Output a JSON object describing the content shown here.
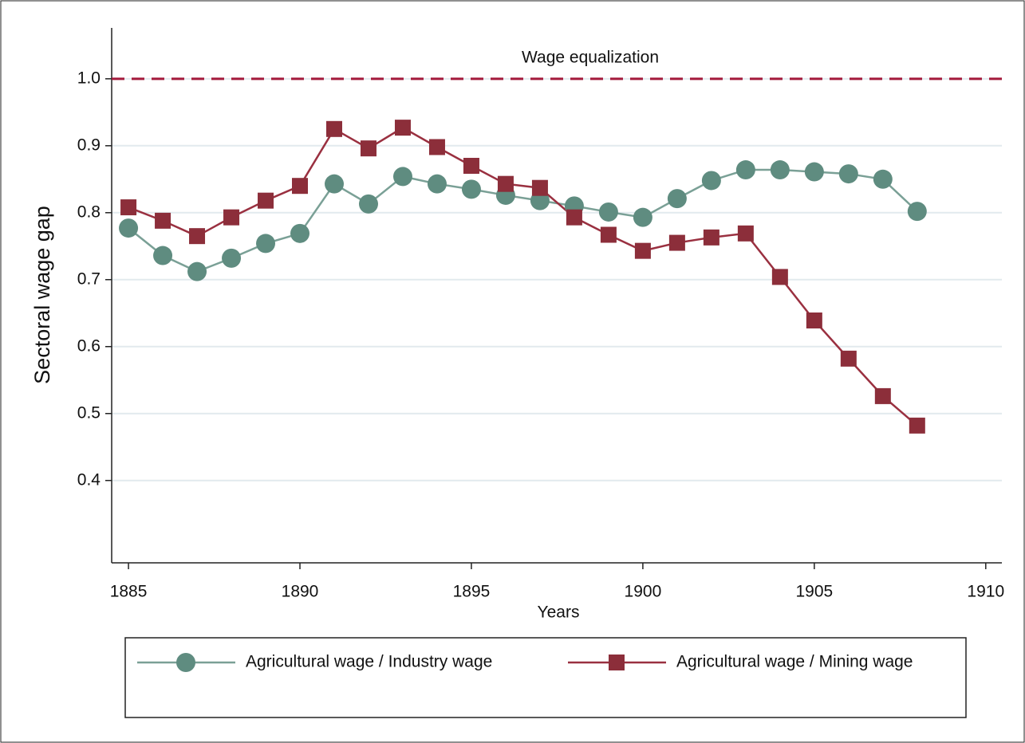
{
  "chart_data": {
    "type": "line",
    "x_label": "Years",
    "y_label": "Sectoral wage gap",
    "x": [
      1885,
      1886,
      1887,
      1888,
      1889,
      1890,
      1891,
      1892,
      1893,
      1894,
      1895,
      1896,
      1897,
      1898,
      1899,
      1900,
      1901,
      1902,
      1903,
      1904,
      1905,
      1906,
      1907,
      1908
    ],
    "series": [
      {
        "name": "Agricultural wage / Industry wage",
        "color": "#5f8c80",
        "line_color": "#7aa096",
        "marker": "circle",
        "values": [
          0.777,
          0.736,
          0.712,
          0.732,
          0.754,
          0.769,
          0.843,
          0.813,
          0.854,
          0.843,
          0.835,
          0.826,
          0.818,
          0.81,
          0.801,
          0.793,
          0.821,
          0.848,
          0.864,
          0.864,
          0.861,
          0.858,
          0.85,
          0.802
        ]
      },
      {
        "name": "Agricultural wage / Mining wage",
        "color": "#8c2e3a",
        "line_color": "#9a3040",
        "marker": "square",
        "values": [
          0.808,
          0.788,
          0.765,
          0.793,
          0.818,
          0.84,
          0.925,
          0.896,
          0.927,
          0.898,
          0.87,
          0.843,
          0.837,
          0.793,
          0.767,
          0.743,
          0.755,
          0.763,
          0.769,
          0.704,
          0.639,
          0.582,
          0.526,
          0.482
        ]
      }
    ],
    "reference_line": {
      "value": 1,
      "label": "Wage equalization",
      "color": "#a3193b"
    },
    "xlim": [
      1884.51,
      1910.47
    ],
    "xticks": [
      1885,
      1890,
      1895,
      1900,
      1905,
      1910
    ],
    "ylim": [
      0.277,
      1.076
    ],
    "yticks": [
      0.4,
      0.5,
      0.6,
      0.7,
      0.8,
      0.9,
      {
        "value": 1,
        "label": "1.0"
      }
    ],
    "grid": true,
    "legend": "bottom"
  }
}
